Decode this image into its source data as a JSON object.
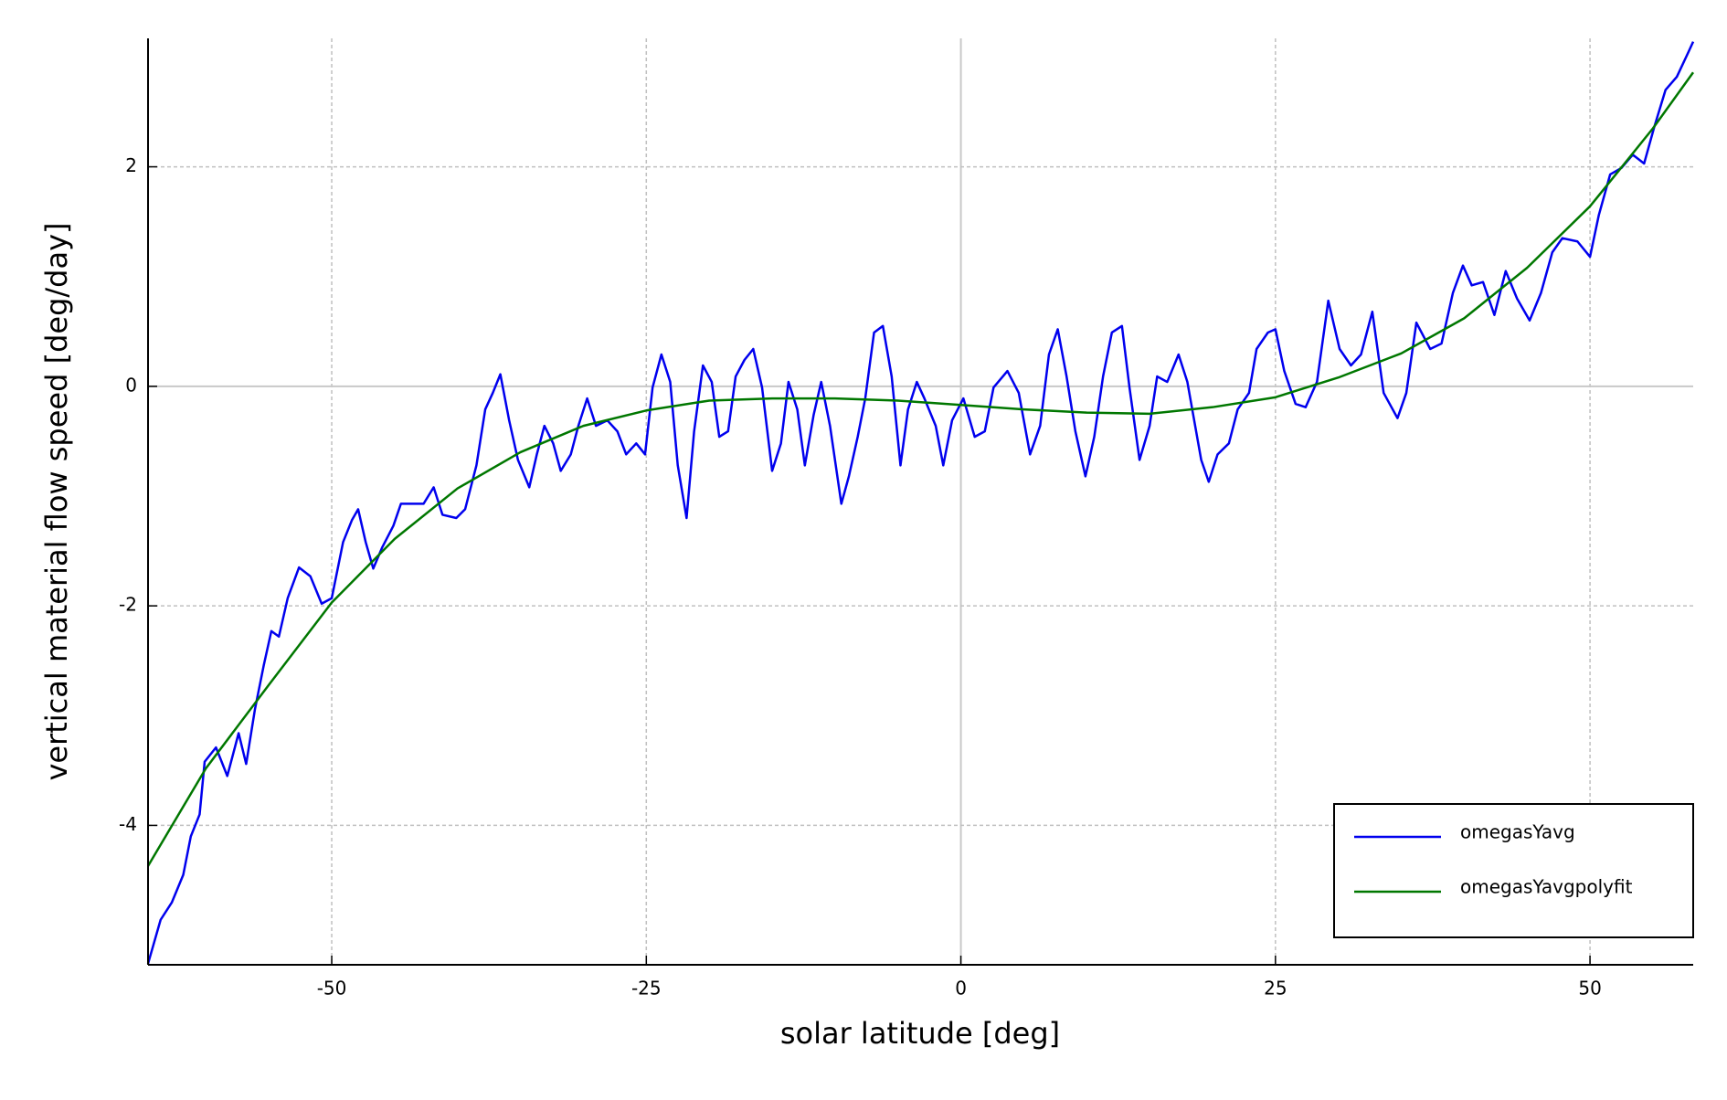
{
  "chart_data": {
    "type": "line",
    "xlabel": "solar latitude [deg]",
    "ylabel": "vertical material flow speed [deg/day]",
    "xlim": [
      -64.6,
      58.2
    ],
    "ylim": [
      -5.27,
      3.17
    ],
    "xticks": [
      -50,
      -25,
      0,
      25,
      50
    ],
    "yticks": [
      -4,
      -2,
      0,
      2
    ],
    "grid": true,
    "legend": "lower right",
    "series": [
      {
        "name": "omegasYavg",
        "color": "#0000ee",
        "x": [
          -64.6,
          -63.6,
          -62.7,
          -61.8,
          -61.2,
          -60.5,
          -60.1,
          -59.2,
          -58.3,
          -57.4,
          -56.8,
          -56.1,
          -55.4,
          -54.8,
          -54.2,
          -53.5,
          -52.6,
          -51.7,
          -50.8,
          -50.0,
          -49.1,
          -48.4,
          -47.9,
          -47.3,
          -46.7,
          -46.0,
          -45.1,
          -44.5,
          -43.6,
          -42.7,
          -41.9,
          -41.2,
          -40.1,
          -39.4,
          -38.5,
          -37.8,
          -37.2,
          -36.6,
          -35.9,
          -35.2,
          -34.3,
          -33.7,
          -33.1,
          -32.4,
          -31.8,
          -31.0,
          -30.4,
          -29.7,
          -29.0,
          -28.1,
          -27.3,
          -26.6,
          -25.8,
          -25.1,
          -24.5,
          -23.8,
          -23.1,
          -22.5,
          -21.8,
          -21.2,
          -20.5,
          -19.8,
          -19.2,
          -18.5,
          -17.9,
          -17.2,
          -16.5,
          -15.8,
          -15.0,
          -14.3,
          -13.7,
          -13.0,
          -12.4,
          -11.7,
          -11.1,
          -10.4,
          -9.5,
          -8.9,
          -8.2,
          -7.6,
          -6.9,
          -6.2,
          -5.5,
          -4.8,
          -4.2,
          -3.5,
          -2.9,
          -2.0,
          -1.4,
          -0.7,
          0.2,
          1.1,
          1.9,
          2.6,
          3.7,
          4.6,
          5.5,
          6.3,
          7.0,
          7.7,
          8.4,
          9.1,
          9.9,
          10.6,
          11.3,
          12.0,
          12.8,
          13.4,
          14.2,
          15.0,
          15.6,
          16.4,
          17.3,
          18.0,
          19.1,
          19.7,
          20.4,
          21.3,
          22.0,
          22.9,
          23.5,
          24.4,
          25.0,
          25.7,
          26.6,
          27.4,
          28.3,
          29.2,
          30.1,
          31.0,
          31.8,
          32.7,
          33.6,
          34.7,
          35.4,
          36.2,
          37.3,
          38.2,
          39.1,
          39.9,
          40.6,
          41.5,
          42.4,
          43.3,
          44.2,
          45.2,
          46.1,
          47.0,
          47.8,
          49.0,
          50.0,
          50.7,
          51.6,
          52.5,
          53.4,
          54.3,
          55.1,
          56.0,
          56.9,
          57.8,
          58.2
        ],
        "values": [
          -5.26,
          -4.86,
          -4.7,
          -4.45,
          -4.1,
          -3.9,
          -3.42,
          -3.29,
          -3.55,
          -3.16,
          -3.44,
          -2.94,
          -2.54,
          -2.23,
          -2.28,
          -1.93,
          -1.65,
          -1.73,
          -1.98,
          -1.93,
          -1.42,
          -1.22,
          -1.12,
          -1.42,
          -1.66,
          -1.47,
          -1.27,
          -1.07,
          -1.07,
          -1.07,
          -0.92,
          -1.17,
          -1.2,
          -1.12,
          -0.72,
          -0.21,
          -0.06,
          0.11,
          -0.31,
          -0.67,
          -0.92,
          -0.62,
          -0.36,
          -0.52,
          -0.77,
          -0.62,
          -0.36,
          -0.11,
          -0.36,
          -0.31,
          -0.41,
          -0.62,
          -0.52,
          -0.62,
          -0.01,
          0.29,
          0.04,
          -0.72,
          -1.2,
          -0.41,
          0.19,
          0.04,
          -0.46,
          -0.41,
          0.09,
          0.24,
          0.34,
          -0.01,
          -0.77,
          -0.52,
          0.04,
          -0.21,
          -0.72,
          -0.26,
          0.04,
          -0.36,
          -1.07,
          -0.82,
          -0.46,
          -0.11,
          0.49,
          0.55,
          0.09,
          -0.72,
          -0.21,
          0.04,
          -0.11,
          -0.36,
          -0.72,
          -0.31,
          -0.11,
          -0.46,
          -0.41,
          -0.01,
          0.14,
          -0.06,
          -0.62,
          -0.36,
          0.29,
          0.52,
          0.09,
          -0.41,
          -0.82,
          -0.46,
          0.09,
          0.49,
          0.55,
          -0.01,
          -0.67,
          -0.36,
          0.09,
          0.04,
          0.29,
          0.04,
          -0.67,
          -0.87,
          -0.62,
          -0.52,
          -0.21,
          -0.06,
          0.34,
          0.49,
          0.52,
          0.14,
          -0.16,
          -0.19,
          0.04,
          0.78,
          0.34,
          0.19,
          0.29,
          0.68,
          -0.06,
          -0.29,
          -0.06,
          0.58,
          0.34,
          0.39,
          0.85,
          1.1,
          0.92,
          0.95,
          0.65,
          1.05,
          0.8,
          0.6,
          0.85,
          1.22,
          1.35,
          1.32,
          1.18,
          1.56,
          1.93,
          1.99,
          2.11,
          2.03,
          2.36,
          2.7,
          2.82,
          3.04,
          3.14
        ]
      },
      {
        "name": "omegasYavgpolyfit",
        "color": "#007700",
        "x": [
          -64.6,
          -60,
          -55,
          -50,
          -45,
          -40,
          -35,
          -30,
          -25,
          -20,
          -15,
          -10,
          -5,
          0,
          5,
          10,
          15,
          20,
          25,
          30,
          35,
          40,
          45,
          50,
          55,
          58.2
        ],
        "values": [
          -4.37,
          -3.48,
          -2.72,
          -1.97,
          -1.39,
          -0.93,
          -0.6,
          -0.36,
          -0.22,
          -0.13,
          -0.11,
          -0.11,
          -0.13,
          -0.17,
          -0.21,
          -0.24,
          -0.25,
          -0.19,
          -0.1,
          0.08,
          0.3,
          0.62,
          1.08,
          1.64,
          2.35,
          2.86
        ]
      }
    ]
  }
}
